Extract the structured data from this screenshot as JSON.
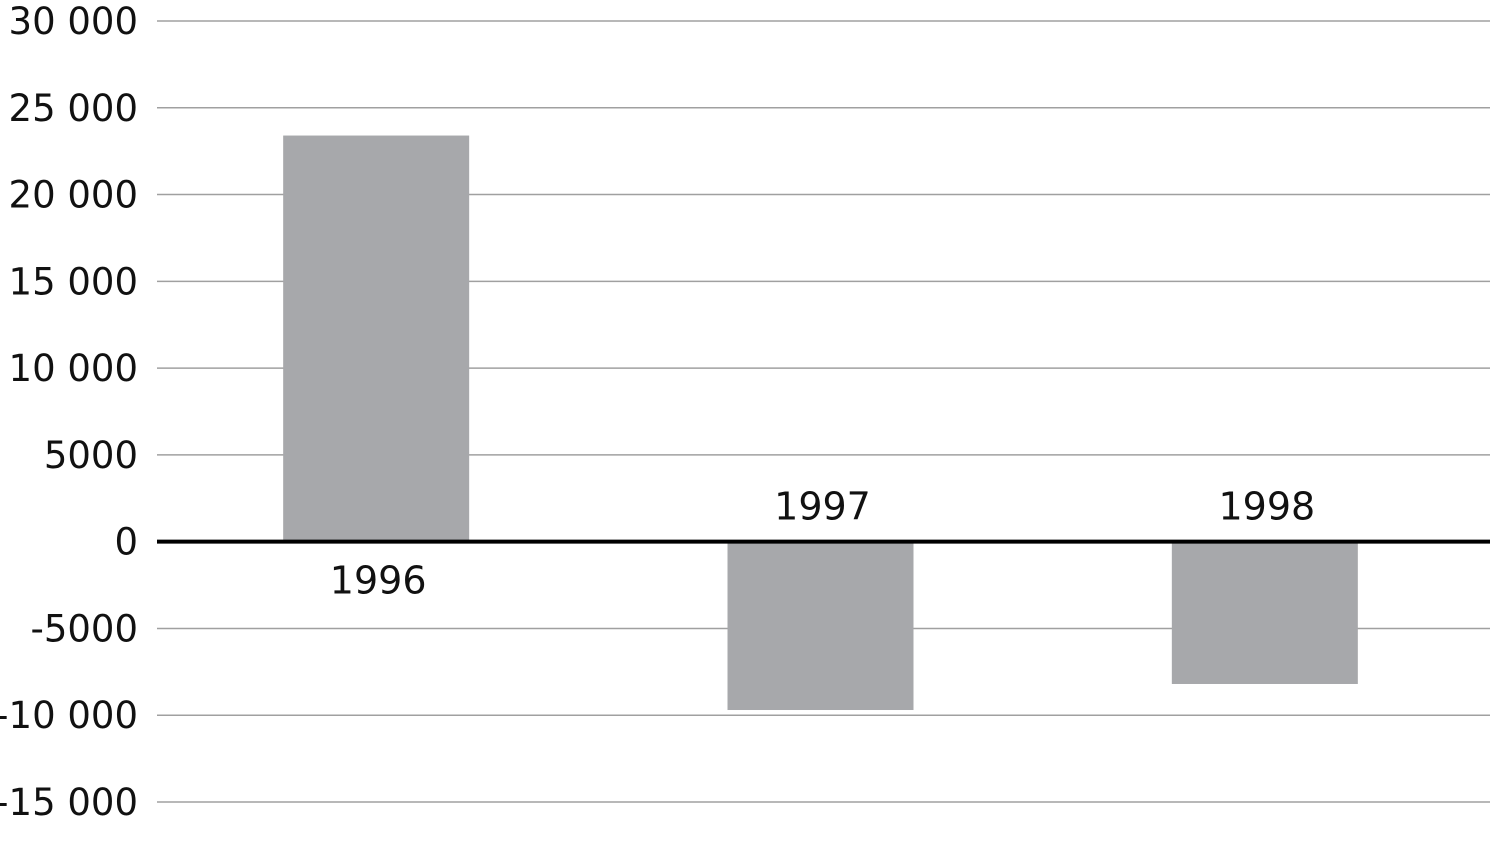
{
  "chart_data": {
    "type": "bar",
    "title": "",
    "xlabel": "",
    "ylabel": "",
    "categories": [
      "1996",
      "1997",
      "1998"
    ],
    "values": [
      23400,
      -9700,
      -8200
    ],
    "ylim": [
      -15000,
      30000
    ],
    "yticks": [
      30000,
      25000,
      20000,
      15000,
      10000,
      5000,
      0,
      -5000,
      -10000,
      -15000
    ],
    "ytick_labels": [
      "30 000",
      "25 000",
      "20 000",
      "15 000",
      "10 000",
      "5000",
      "0",
      "-5000",
      "-10 000",
      "-15 000"
    ],
    "grid": "horizontal",
    "bar_color": "#a7a8ab",
    "grid_color": "#a0a0a0",
    "zero_line_color": "#000000"
  }
}
